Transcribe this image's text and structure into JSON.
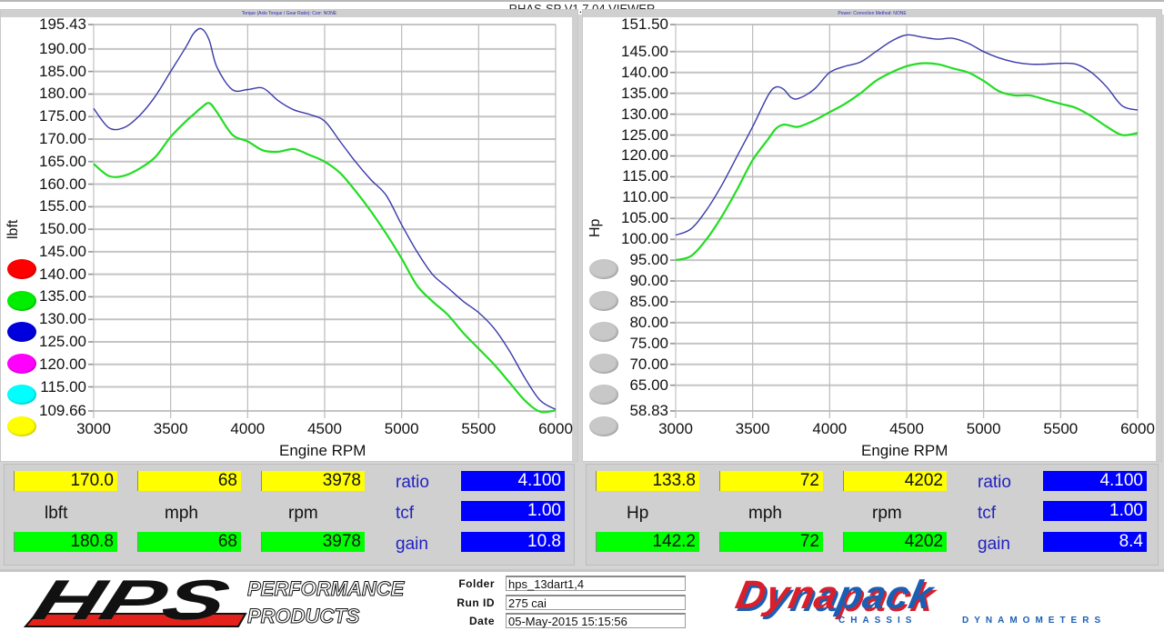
{
  "window": {
    "title": "RHAS-SP V1.7.04  VIEWER"
  },
  "torque_chart": {
    "subtitle": "Torque (Axle Torque / Gear Ratio):     Corr: NONE",
    "ylabel": "lbft",
    "xlabel": "Engine RPM",
    "yticks": [
      "195.43",
      "190.00",
      "185.00",
      "180.00",
      "175.00",
      "170.00",
      "165.00",
      "160.00",
      "155.00",
      "150.00",
      "145.00",
      "140.00",
      "135.00",
      "130.00",
      "125.00",
      "120.00",
      "115.00",
      "109.66"
    ],
    "xticks": [
      "3000",
      "3500",
      "4000",
      "4500",
      "5000",
      "5500",
      "6000"
    ]
  },
  "power_chart": {
    "subtitle": "Power:     Correction Method: NONE",
    "ylabel": "Hp",
    "xlabel": "Engine RPM",
    "yticks": [
      "151.50",
      "145.00",
      "140.00",
      "135.00",
      "130.00",
      "125.00",
      "120.00",
      "115.00",
      "110.00",
      "105.00",
      "100.00",
      "95.00",
      "90.00",
      "85.00",
      "80.00",
      "75.00",
      "70.00",
      "65.00",
      "58.83"
    ],
    "xticks": [
      "3000",
      "3500",
      "4000",
      "4500",
      "5000",
      "5500",
      "6000"
    ]
  },
  "legend_left": {
    "colors": [
      "#ff0000",
      "#00ee00",
      "#0000dd",
      "#ff00ff",
      "#00ffff",
      "#ffff00"
    ]
  },
  "legend_right": {
    "colors": [
      "#c8c8c8",
      "#c8c8c8",
      "#c8c8c8",
      "#c8c8c8",
      "#c8c8c8",
      "#c8c8c8"
    ]
  },
  "panel_left": {
    "yellow": [
      "170.0",
      "68",
      "3978"
    ],
    "labels": [
      "lbft",
      "mph",
      "rpm"
    ],
    "green": [
      "180.8",
      "68",
      "3978"
    ],
    "params": [
      {
        "label": "ratio",
        "value": "4.100"
      },
      {
        "label": "tcf",
        "value": "1.00"
      },
      {
        "label": "gain",
        "value": "10.8"
      }
    ]
  },
  "panel_right": {
    "yellow": [
      "133.8",
      "72",
      "4202"
    ],
    "labels": [
      "Hp",
      "mph",
      "rpm"
    ],
    "green": [
      "142.2",
      "72",
      "4202"
    ],
    "params": [
      {
        "label": "ratio",
        "value": "4.100"
      },
      {
        "label": "tcf",
        "value": "1.00"
      },
      {
        "label": "gain",
        "value": "8.4"
      }
    ]
  },
  "footer": {
    "hps_logo": {
      "mark": "HPS",
      "line1": "PERFORMANCE",
      "line2": "PRODUCTS"
    },
    "meta": [
      {
        "label": "Folder",
        "value": "hps_13dart1,4"
      },
      {
        "label": "Run ID",
        "value": "275 cai"
      },
      {
        "label": "Date",
        "value": "05-May-2015  15:15:56"
      }
    ],
    "dynapack_logo": {
      "word_red": "Dyna",
      "word_blue": "pack",
      "tagline_left": "CHASSIS",
      "tagline_right": "DYNAMOMETERS"
    }
  },
  "chart_data": [
    {
      "type": "line",
      "title": "Torque (Axle Torque / Gear Ratio)  Corr: NONE",
      "xlabel": "Engine RPM",
      "ylabel": "lbft",
      "xlim": [
        3000,
        6000
      ],
      "ylim": [
        109.66,
        195.43
      ],
      "grid": true,
      "x": [
        3000,
        3100,
        3200,
        3300,
        3400,
        3500,
        3600,
        3650,
        3700,
        3750,
        3800,
        3900,
        4000,
        4100,
        4200,
        4300,
        4400,
        4500,
        4600,
        4700,
        4800,
        4900,
        5000,
        5100,
        5200,
        5300,
        5400,
        5500,
        5600,
        5700,
        5800,
        5900,
        6000
      ],
      "series": [
        {
          "name": "Run (blue)",
          "color": "#3a3aaa",
          "values": [
            176.8,
            172.5,
            172.6,
            175.3,
            179.5,
            185.0,
            190.5,
            193.5,
            194.5,
            192.0,
            186.0,
            181.0,
            181.0,
            181.3,
            178.5,
            176.5,
            175.5,
            174.0,
            169.5,
            165.0,
            161.0,
            157.5,
            151.0,
            145.0,
            140.0,
            137.0,
            134.0,
            131.5,
            128.0,
            123.0,
            117.0,
            112.0,
            110.0
          ]
        },
        {
          "name": "Run (green)",
          "color": "#22dd22",
          "values": [
            164.5,
            161.8,
            161.9,
            163.5,
            166.0,
            170.5,
            174.0,
            175.5,
            177.0,
            178.0,
            176.0,
            171.0,
            169.5,
            167.5,
            167.2,
            167.8,
            166.5,
            165.0,
            162.5,
            158.5,
            154.0,
            149.0,
            143.5,
            137.5,
            134.0,
            131.0,
            127.0,
            123.5,
            120.0,
            116.0,
            112.0,
            109.5,
            109.8
          ]
        }
      ]
    },
    {
      "type": "line",
      "title": "Power  Correction Method: NONE",
      "xlabel": "Engine RPM",
      "ylabel": "Hp",
      "xlim": [
        3000,
        6000
      ],
      "ylim": [
        58.83,
        151.5
      ],
      "grid": true,
      "x": [
        3000,
        3100,
        3200,
        3300,
        3400,
        3500,
        3600,
        3650,
        3700,
        3750,
        3800,
        3900,
        4000,
        4100,
        4200,
        4300,
        4400,
        4500,
        4600,
        4700,
        4800,
        4900,
        5000,
        5100,
        5200,
        5300,
        5400,
        5500,
        5600,
        5700,
        5800,
        5900,
        6000
      ],
      "series": [
        {
          "name": "Run (blue)",
          "color": "#3a3aaa",
          "values": [
            101.0,
            102.5,
            107.0,
            113.0,
            120.0,
            127.0,
            134.5,
            136.5,
            136.0,
            134.0,
            133.8,
            136.0,
            140.0,
            141.5,
            142.5,
            145.0,
            147.5,
            149.0,
            148.5,
            148.0,
            148.2,
            147.0,
            145.0,
            143.5,
            142.5,
            142.0,
            142.0,
            142.2,
            142.0,
            140.0,
            136.5,
            132.0,
            131.0
          ]
        },
        {
          "name": "Run (green)",
          "color": "#22dd22",
          "values": [
            95.0,
            96.0,
            100.0,
            105.5,
            112.0,
            119.0,
            124.0,
            126.5,
            127.5,
            127.2,
            127.0,
            128.5,
            130.5,
            132.5,
            135.0,
            138.0,
            140.0,
            141.5,
            142.2,
            142.0,
            141.0,
            140.0,
            138.0,
            135.5,
            134.5,
            134.5,
            133.5,
            132.5,
            131.5,
            129.5,
            127.0,
            125.0,
            125.5
          ]
        }
      ]
    }
  ]
}
